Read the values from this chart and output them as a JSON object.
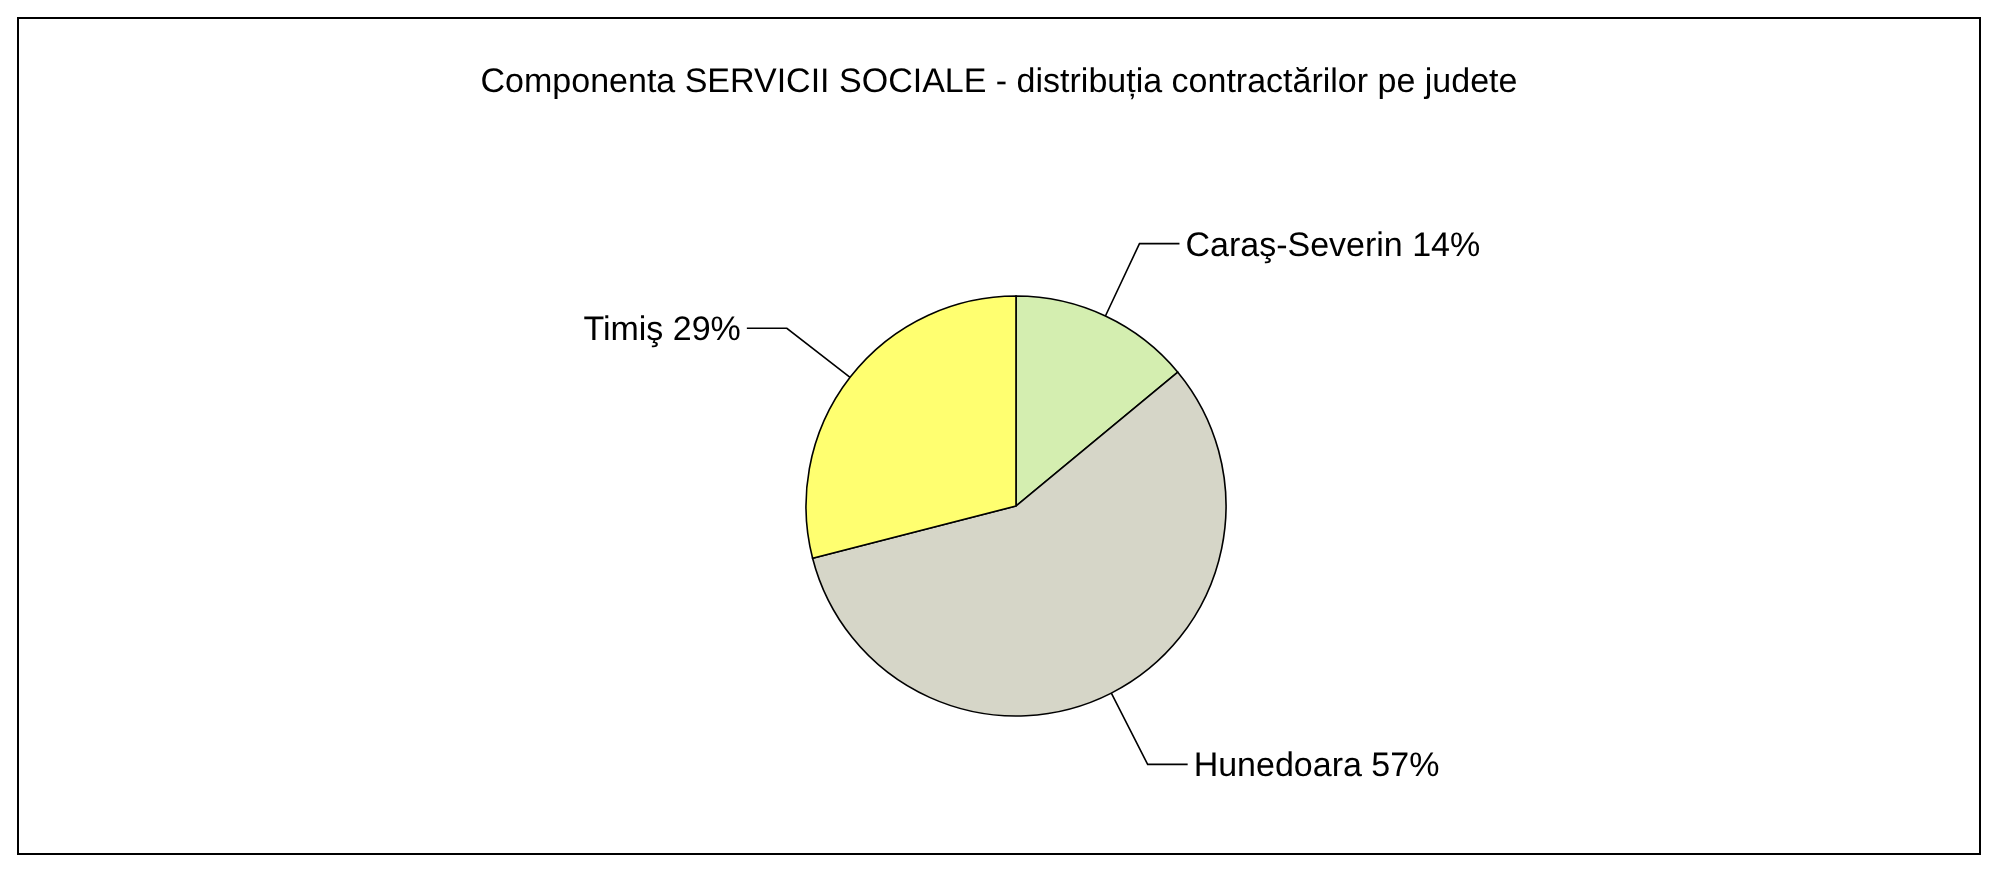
{
  "chart_data": {
    "type": "pie",
    "title": "Componenta SERVICII SOCIALE - distribuția contractărilor pe judete",
    "categories": [
      "Caraş-Severin",
      "Hunedoara",
      "Timiş"
    ],
    "values": [
      14,
      57,
      29
    ],
    "colors": [
      "#d4eeb0",
      "#d6d6c8",
      "#ffff70"
    ],
    "value_labels": [
      "14%",
      "57%",
      "29%"
    ],
    "legend": false
  }
}
